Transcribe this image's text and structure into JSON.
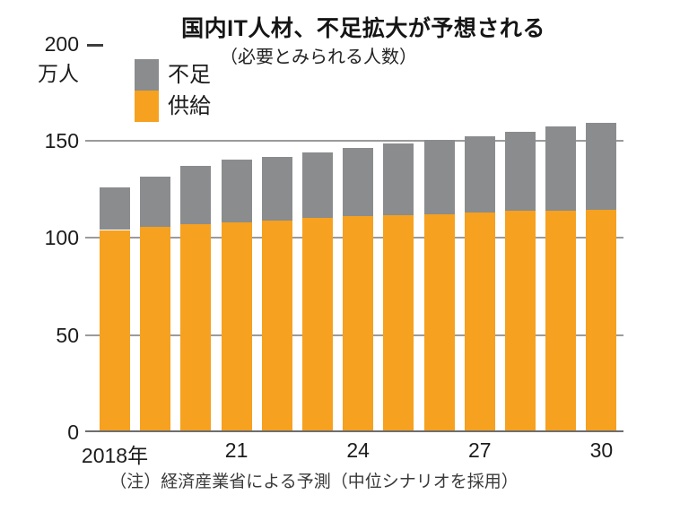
{
  "figure": {
    "title": "国内IT人材、不足拡大が予想される",
    "subtitle": "（必要とみられる人数）",
    "note": "（注）経済産業省による予測（中位シナリオを採用）",
    "y_axis_top_value": "200",
    "y_axis_unit": "万人",
    "colors": {
      "supply_orange": "#F6A120",
      "shortage_gray": "#8A8C8E",
      "gridline": "#9B9B9B",
      "axis": "#6E6E6E",
      "text": "#1C1C1C"
    }
  },
  "chart_data": {
    "type": "bar",
    "stacked": true,
    "title": "国内IT人材、不足拡大が予想される",
    "subtitle": "（必要とみられる人数）",
    "note": "（注）経済産業省による予測（中位シナリオを採用）",
    "ylabel": "万人",
    "ylim": [
      0,
      200
    ],
    "yticks": [
      0,
      50,
      100,
      150,
      200
    ],
    "grid": true,
    "legend_position": "top-left",
    "categories": [
      2018,
      2019,
      2020,
      2021,
      2022,
      2023,
      2024,
      2025,
      2026,
      2027,
      2028,
      2029,
      2030
    ],
    "x_tick_labels": [
      {
        "index": 0,
        "label": "2018年"
      },
      {
        "index": 3,
        "label": "21"
      },
      {
        "index": 6,
        "label": "24"
      },
      {
        "index": 9,
        "label": "27"
      },
      {
        "index": 12,
        "label": "30"
      }
    ],
    "series": [
      {
        "name": "供給",
        "color": "#F6A120",
        "values": [
          103,
          104.5,
          106,
          107,
          108,
          109,
          110,
          110.5,
          111,
          112,
          113,
          113,
          113.5
        ]
      },
      {
        "name": "不足",
        "color": "#8A8C8E",
        "values": [
          22,
          26,
          30,
          32,
          32.5,
          34,
          35,
          37,
          38.5,
          39,
          40.5,
          43,
          44.5
        ]
      }
    ]
  }
}
